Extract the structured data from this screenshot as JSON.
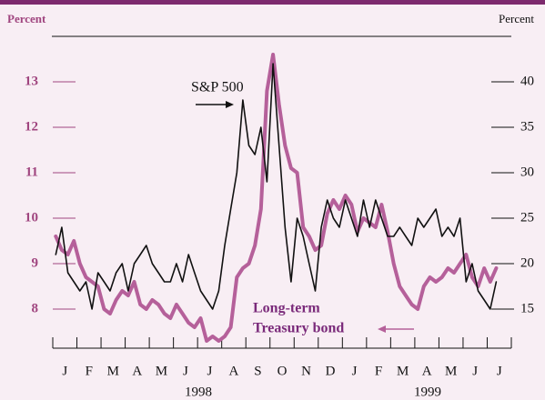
{
  "chart_data": {
    "type": "line",
    "ylabel": "Percent",
    "y2label": "Percent",
    "categories": [
      null,
      null,
      "J",
      null,
      null,
      null,
      "F",
      null,
      null,
      null,
      "M",
      null,
      null,
      null,
      "A",
      null,
      null,
      null,
      "M",
      null,
      null,
      null,
      "J",
      null,
      null,
      null,
      "J",
      null,
      null,
      null,
      "A",
      null,
      null,
      null,
      "S",
      null,
      null,
      null,
      "O",
      null,
      null,
      null,
      "N",
      null,
      null,
      null,
      "D",
      null,
      null,
      null,
      "J",
      null,
      null,
      null,
      "F",
      null,
      null,
      null,
      "M",
      null,
      null,
      null,
      "A",
      null,
      null,
      null,
      "M",
      null,
      null,
      null,
      "J",
      null,
      null,
      null,
      "J",
      null
    ],
    "year_labels": [
      "1998",
      "1999"
    ],
    "series": [
      {
        "name": "S&P 500",
        "color": "#111111",
        "axis": "y2",
        "values": [
          21,
          24,
          19,
          18,
          17,
          18,
          15,
          19,
          18,
          17,
          19,
          20,
          17,
          20,
          21,
          22,
          20,
          19,
          18,
          18,
          20,
          18,
          21,
          19,
          17,
          16,
          15,
          17,
          22,
          26,
          30,
          38,
          33,
          32,
          35,
          29,
          42,
          33,
          24,
          18,
          25,
          23,
          20,
          17,
          24,
          27,
          25,
          24,
          27,
          25,
          23,
          27,
          24,
          27,
          25,
          23,
          23,
          24,
          23,
          22,
          25,
          24,
          25,
          26,
          23,
          24,
          23,
          25,
          18,
          20,
          17,
          16,
          15,
          18,
          null,
          null
        ]
      },
      {
        "label": [
          "Long-term",
          "Treasury bond"
        ],
        "color": "#b5609a",
        "axis": "y",
        "values": [
          9.6,
          9.3,
          9.2,
          9.5,
          9.0,
          8.7,
          8.6,
          8.5,
          8.0,
          7.9,
          8.2,
          8.4,
          8.3,
          8.6,
          8.1,
          8.0,
          8.2,
          8.1,
          7.9,
          7.8,
          8.1,
          7.9,
          7.7,
          7.6,
          7.8,
          7.3,
          7.4,
          7.3,
          7.4,
          7.6,
          8.7,
          8.9,
          9.0,
          9.4,
          10.2,
          12.8,
          13.6,
          12.5,
          11.6,
          11.1,
          11.0,
          9.8,
          9.6,
          9.3,
          9.4,
          10.1,
          10.4,
          10.2,
          10.5,
          10.3,
          9.7,
          10.0,
          9.9,
          9.8,
          10.3,
          9.7,
          9.0,
          8.5,
          8.3,
          8.1,
          8.0,
          8.5,
          8.7,
          8.6,
          8.7,
          8.9,
          8.8,
          9.0,
          9.2,
          8.7,
          8.5,
          8.9,
          8.6,
          8.9,
          null,
          null
        ]
      }
    ],
    "ylim": [
      7.2,
      14.0
    ],
    "yticks": [
      8,
      9,
      10,
      11,
      12,
      13
    ],
    "y2lim": [
      11,
      45
    ],
    "y2ticks": [
      15,
      20,
      25,
      30,
      35,
      40
    ]
  }
}
